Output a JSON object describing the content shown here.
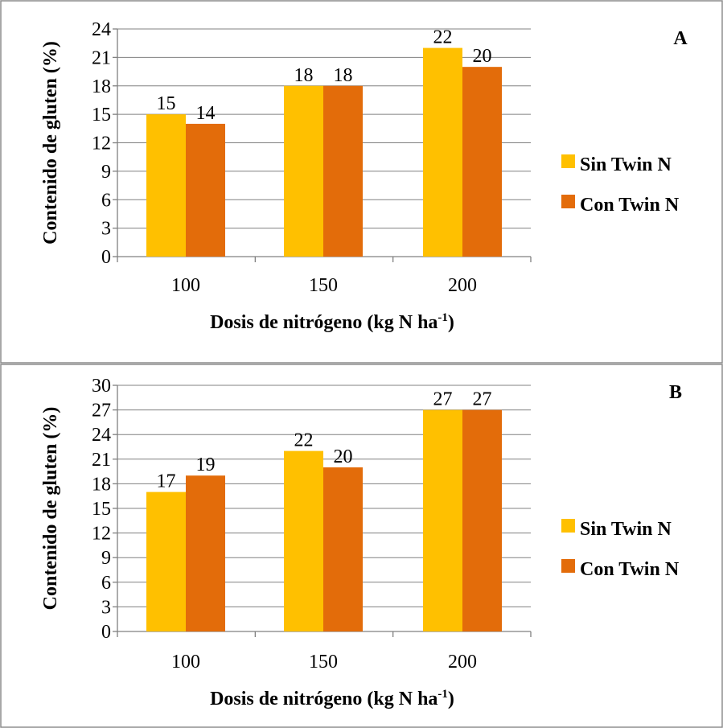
{
  "colors": {
    "sin": "#FFC000",
    "con": "#E36C0A"
  },
  "chart_data": [
    {
      "type": "bar",
      "panel_label": "A",
      "categories": [
        "100",
        "150",
        "200"
      ],
      "series": [
        {
          "name": "Sin Twin N",
          "values": [
            15,
            18,
            22
          ]
        },
        {
          "name": "Con Twin N",
          "values": [
            14,
            18,
            20
          ]
        }
      ],
      "ylim": [
        0,
        24
      ],
      "yticks": [
        0,
        3,
        6,
        9,
        12,
        15,
        18,
        21,
        24
      ],
      "xlabel": "Dosis de nitrógeno (kg N ha",
      "xlabel_sup": "-1",
      "xlabel_end": ")",
      "ylabel": "Contenido de gluten (%)",
      "grid": true,
      "legend": "right"
    },
    {
      "type": "bar",
      "panel_label": "B",
      "categories": [
        "100",
        "150",
        "200"
      ],
      "series": [
        {
          "name": "Sin Twin N",
          "values": [
            17,
            22,
            27
          ]
        },
        {
          "name": "Con Twin N",
          "values": [
            19,
            20,
            27
          ]
        }
      ],
      "ylim": [
        0,
        30
      ],
      "yticks": [
        0,
        3,
        6,
        9,
        12,
        15,
        18,
        21,
        24,
        27,
        30
      ],
      "xlabel": "Dosis de nitrógeno (kg N ha",
      "xlabel_sup": "-1",
      "xlabel_end": ")",
      "ylabel": "Contenido de gluten (%)",
      "grid": true,
      "legend": "right"
    }
  ]
}
